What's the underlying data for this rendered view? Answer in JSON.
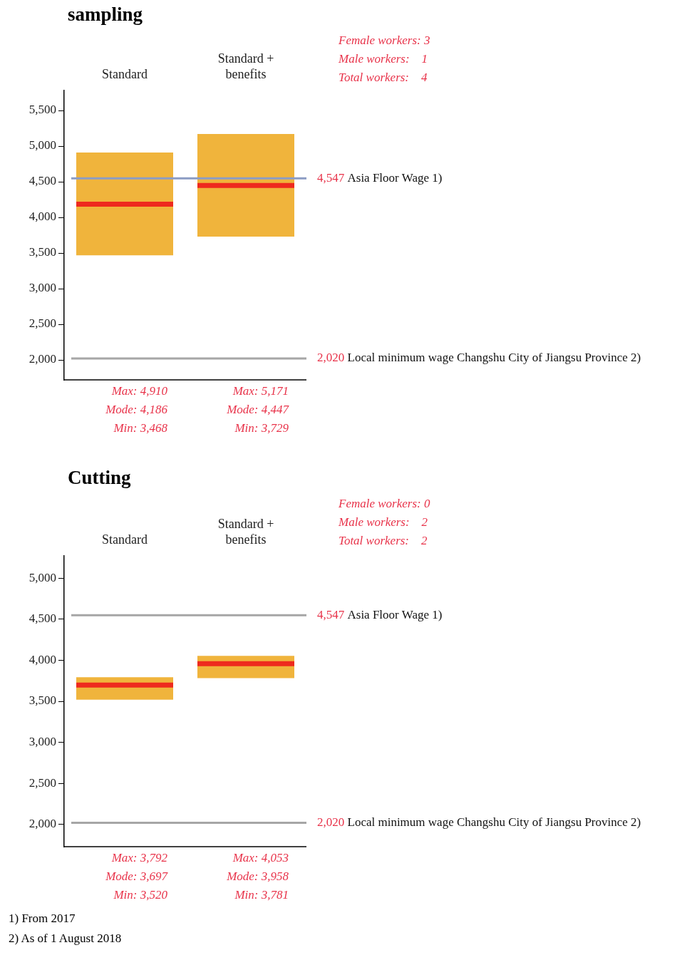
{
  "chart_data": [
    {
      "type": "box",
      "title": "sampling",
      "categories": [
        "Standard",
        "Standard + benefits"
      ],
      "series": [
        {
          "color": "#f0b43c",
          "boxes": [
            {
              "low": 3468,
              "q1": 3468,
              "median": 4186,
              "q3": 4910,
              "high": 4910
            },
            {
              "low": 3729,
              "q1": 3729,
              "median": 4447,
              "q3": 5171,
              "high": 5171
            }
          ]
        }
      ],
      "ylim": [
        1720,
        5780
      ],
      "yticks": [
        {
          "value": 2000,
          "label": "2,000"
        },
        {
          "value": 2500,
          "label": "2,500"
        },
        {
          "value": 3000,
          "label": "3,000"
        },
        {
          "value": 3500,
          "label": "3,500"
        },
        {
          "value": 4000,
          "label": "4,000"
        },
        {
          "value": 4500,
          "label": "4,500"
        },
        {
          "value": 5000,
          "label": "5,000"
        },
        {
          "value": 5500,
          "label": "5,500"
        }
      ],
      "ref_lines": [
        {
          "axis": "y",
          "value": 4547,
          "label": "4,547 Asia Floor Wage 1)",
          "color": "#8c9cc4"
        },
        {
          "axis": "y",
          "value": 2020,
          "label": "2,020 Local minimum wage Changshu City of Jiangsu Province 2)",
          "color": "#a6a6a6"
        }
      ],
      "annotations": [
        "Female workers: 3",
        "Male workers:    1",
        "Total workers:    4",
        "Max: 4,910",
        "Mode: 4,186",
        "Min: 3,468",
        "Max: 5,171",
        "Mode: 4,447",
        "Min: 3,729"
      ]
    },
    {
      "type": "box",
      "title": "Cutting",
      "categories": [
        "Standard",
        "Standard + benefits"
      ],
      "series": [
        {
          "color": "#f0b43c",
          "boxes": [
            {
              "low": 3520,
              "q1": 3520,
              "median": 3697,
              "q3": 3792,
              "high": 3792
            },
            {
              "low": 3781,
              "q1": 3781,
              "median": 3958,
              "q3": 4053,
              "high": 4053
            }
          ]
        }
      ],
      "ylim": [
        1730,
        5270
      ],
      "yticks": [
        {
          "value": 2000,
          "label": "2,000"
        },
        {
          "value": 2500,
          "label": "2,500"
        },
        {
          "value": 3000,
          "label": "3,000"
        },
        {
          "value": 3500,
          "label": "3,500"
        },
        {
          "value": 4000,
          "label": "4,000"
        },
        {
          "value": 4500,
          "label": "4,500"
        },
        {
          "value": 5000,
          "label": "5,000"
        }
      ],
      "ref_lines": [
        {
          "axis": "y",
          "value": 4547,
          "label": "4,547 Asia Floor Wage 1)",
          "color": "#a6a6a6"
        },
        {
          "axis": "y",
          "value": 2020,
          "label": "2,020 Local minimum wage Changshu City of Jiangsu Province 2)",
          "color": "#a6a6a6"
        }
      ],
      "annotations": [
        "Female workers: 0",
        "Male workers:    2",
        "Total workers:    2",
        "Max: 3,792",
        "Mode: 3,697",
        "Min: 3,520",
        "Max: 4,053",
        "Mode: 3,958",
        "Min: 3,781"
      ]
    },
    {
      "type": "other",
      "annotations": [
        "1) From 2017",
        "2) As of 1 August 2018"
      ]
    }
  ]
}
